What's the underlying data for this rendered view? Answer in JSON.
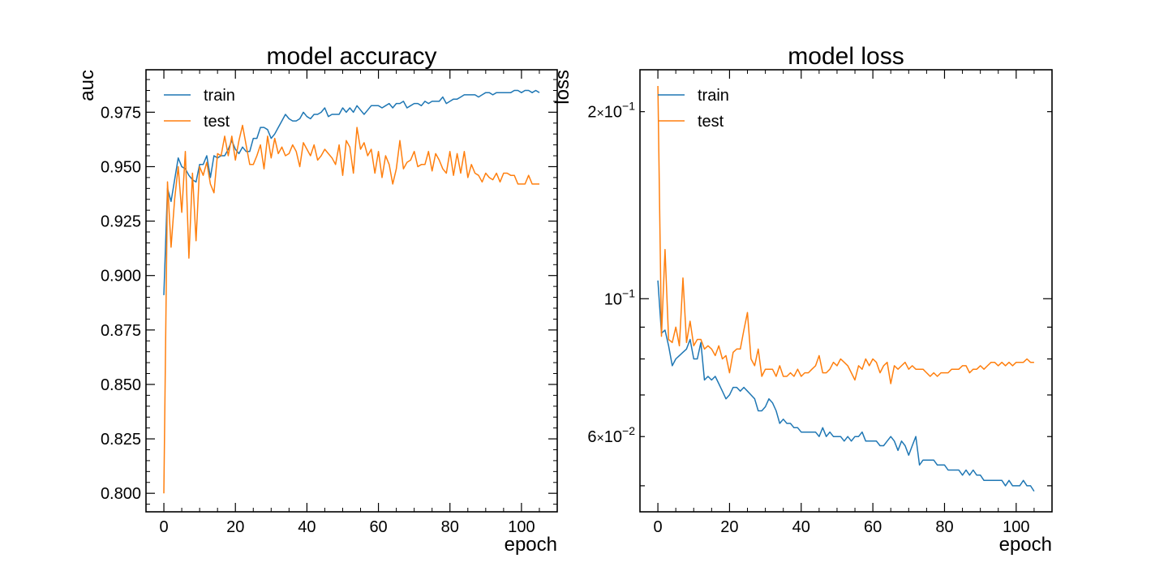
{
  "chart_data": [
    {
      "type": "line",
      "title": "model accuracy",
      "xlabel": "epoch",
      "ylabel": "auc",
      "yscale": "linear",
      "xlim": [
        -5,
        110
      ],
      "ylim": [
        0.7915,
        0.9945
      ],
      "xticks": [
        0,
        20,
        40,
        60,
        80,
        100
      ],
      "xtick_labels": [
        "0",
        "20",
        "40",
        "60",
        "80",
        "100"
      ],
      "yticks": [
        0.8,
        0.825,
        0.85,
        0.875,
        0.9,
        0.925,
        0.95,
        0.975
      ],
      "ytick_labels": [
        "0.800",
        "0.825",
        "0.850",
        "0.875",
        "0.900",
        "0.925",
        "0.950",
        "0.975"
      ],
      "legend_position": "top-left",
      "grid": false,
      "series": [
        {
          "name": "train",
          "color": "#1f77b4",
          "x": [
            0,
            1,
            2,
            3,
            4,
            5,
            6,
            7,
            8,
            9,
            10,
            11,
            12,
            13,
            14,
            15,
            16,
            17,
            18,
            19,
            20,
            21,
            22,
            23,
            24,
            25,
            26,
            27,
            28,
            29,
            30,
            31,
            32,
            33,
            34,
            35,
            36,
            37,
            38,
            39,
            40,
            41,
            42,
            43,
            44,
            45,
            46,
            47,
            48,
            49,
            50,
            51,
            52,
            53,
            54,
            55,
            56,
            57,
            58,
            59,
            60,
            61,
            62,
            63,
            64,
            65,
            66,
            67,
            68,
            69,
            70,
            71,
            72,
            73,
            74,
            75,
            76,
            77,
            78,
            79,
            80,
            81,
            82,
            83,
            84,
            85,
            86,
            87,
            88,
            89,
            90,
            91,
            92,
            93,
            94,
            95,
            96,
            97,
            98,
            99,
            100,
            101,
            102,
            103,
            104,
            105
          ],
          "values": [
            0.891,
            0.94,
            0.934,
            0.944,
            0.954,
            0.95,
            0.949,
            0.946,
            0.944,
            0.943,
            0.951,
            0.951,
            0.955,
            0.945,
            0.955,
            0.954,
            0.955,
            0.955,
            0.958,
            0.962,
            0.958,
            0.956,
            0.959,
            0.957,
            0.957,
            0.963,
            0.963,
            0.968,
            0.968,
            0.967,
            0.963,
            0.965,
            0.968,
            0.971,
            0.974,
            0.972,
            0.971,
            0.971,
            0.972,
            0.975,
            0.973,
            0.972,
            0.974,
            0.974,
            0.975,
            0.977,
            0.973,
            0.974,
            0.974,
            0.974,
            0.977,
            0.975,
            0.977,
            0.975,
            0.978,
            0.976,
            0.974,
            0.976,
            0.978,
            0.978,
            0.978,
            0.977,
            0.978,
            0.979,
            0.977,
            0.979,
            0.979,
            0.98,
            0.977,
            0.978,
            0.979,
            0.979,
            0.978,
            0.98,
            0.979,
            0.98,
            0.98,
            0.98,
            0.982,
            0.979,
            0.98,
            0.981,
            0.981,
            0.982,
            0.983,
            0.983,
            0.983,
            0.983,
            0.982,
            0.983,
            0.984,
            0.984,
            0.983,
            0.984,
            0.984,
            0.984,
            0.984,
            0.984,
            0.985,
            0.985,
            0.984,
            0.985,
            0.985,
            0.984,
            0.985,
            0.984
          ]
        },
        {
          "name": "test",
          "color": "#ff7f0e",
          "x": [
            0,
            1,
            2,
            3,
            4,
            5,
            6,
            7,
            8,
            9,
            10,
            11,
            12,
            13,
            14,
            15,
            16,
            17,
            18,
            19,
            20,
            21,
            22,
            23,
            24,
            25,
            26,
            27,
            28,
            29,
            30,
            31,
            32,
            33,
            34,
            35,
            36,
            37,
            38,
            39,
            40,
            41,
            42,
            43,
            44,
            45,
            46,
            47,
            48,
            49,
            50,
            51,
            52,
            53,
            54,
            55,
            56,
            57,
            58,
            59,
            60,
            61,
            62,
            63,
            64,
            65,
            66,
            67,
            68,
            69,
            70,
            71,
            72,
            73,
            74,
            75,
            76,
            77,
            78,
            79,
            80,
            81,
            82,
            83,
            84,
            85,
            86,
            87,
            88,
            89,
            90,
            91,
            92,
            93,
            94,
            95,
            96,
            97,
            98,
            99,
            100,
            101,
            102,
            103,
            104,
            105
          ],
          "values": [
            0.8,
            0.943,
            0.913,
            0.935,
            0.95,
            0.929,
            0.957,
            0.908,
            0.947,
            0.916,
            0.95,
            0.946,
            0.952,
            0.942,
            0.938,
            0.956,
            0.955,
            0.964,
            0.955,
            0.964,
            0.953,
            0.962,
            0.969,
            0.96,
            0.951,
            0.951,
            0.955,
            0.96,
            0.949,
            0.964,
            0.954,
            0.963,
            0.956,
            0.959,
            0.955,
            0.956,
            0.96,
            0.957,
            0.95,
            0.961,
            0.958,
            0.955,
            0.96,
            0.953,
            0.955,
            0.958,
            0.956,
            0.954,
            0.951,
            0.96,
            0.946,
            0.962,
            0.959,
            0.947,
            0.968,
            0.958,
            0.961,
            0.955,
            0.958,
            0.947,
            0.957,
            0.945,
            0.955,
            0.951,
            0.942,
            0.949,
            0.962,
            0.949,
            0.952,
            0.953,
            0.957,
            0.95,
            0.951,
            0.951,
            0.957,
            0.948,
            0.956,
            0.953,
            0.949,
            0.947,
            0.957,
            0.946,
            0.956,
            0.947,
            0.957,
            0.945,
            0.951,
            0.947,
            0.946,
            0.943,
            0.947,
            0.945,
            0.944,
            0.947,
            0.943,
            0.947,
            0.947,
            0.946,
            0.946,
            0.942,
            0.942,
            0.942,
            0.946,
            0.942,
            0.942,
            0.942
          ]
        }
      ]
    },
    {
      "type": "line",
      "title": "model loss",
      "xlabel": "epoch",
      "ylabel": "loss",
      "yscale": "log",
      "xlim": [
        -5,
        110
      ],
      "ylim": [
        0.0454,
        0.2336
      ],
      "xticks": [
        0,
        20,
        40,
        60,
        80,
        100
      ],
      "xtick_labels": [
        "0",
        "20",
        "40",
        "60",
        "80",
        "100"
      ],
      "y_major_ticks": [
        0.1
      ],
      "y_labeled_minor_ticks": [
        0.06,
        0.2
      ],
      "y_unlabeled_minor_ticks": [
        0.05,
        0.07,
        0.08,
        0.09
      ],
      "ytick_labels": {
        "0.2": [
          "2",
          "×",
          "10",
          "−1"
        ],
        "0.1": [
          "",
          "",
          "10",
          "−1"
        ],
        "0.06": [
          "6",
          "×",
          "10",
          "−2"
        ]
      },
      "legend_position": "top-left",
      "grid": false,
      "series": [
        {
          "name": "train",
          "color": "#1f77b4",
          "x": [
            0,
            1,
            2,
            3,
            4,
            5,
            6,
            7,
            8,
            9,
            10,
            11,
            12,
            13,
            14,
            15,
            16,
            17,
            18,
            19,
            20,
            21,
            22,
            23,
            24,
            25,
            26,
            27,
            28,
            29,
            30,
            31,
            32,
            33,
            34,
            35,
            36,
            37,
            38,
            39,
            40,
            41,
            42,
            43,
            44,
            45,
            46,
            47,
            48,
            49,
            50,
            51,
            52,
            53,
            54,
            55,
            56,
            57,
            58,
            59,
            60,
            61,
            62,
            63,
            64,
            65,
            66,
            67,
            68,
            69,
            70,
            71,
            72,
            73,
            74,
            75,
            76,
            77,
            78,
            79,
            80,
            81,
            82,
            83,
            84,
            85,
            86,
            87,
            88,
            89,
            90,
            91,
            92,
            93,
            94,
            95,
            96,
            97,
            98,
            99,
            100,
            101,
            102,
            103,
            104,
            105
          ],
          "values": [
            0.107,
            0.088,
            0.089,
            0.084,
            0.078,
            0.08,
            0.081,
            0.082,
            0.083,
            0.086,
            0.08,
            0.08,
            0.085,
            0.074,
            0.075,
            0.074,
            0.075,
            0.073,
            0.071,
            0.069,
            0.07,
            0.072,
            0.072,
            0.071,
            0.072,
            0.071,
            0.07,
            0.069,
            0.066,
            0.066,
            0.067,
            0.069,
            0.068,
            0.066,
            0.063,
            0.064,
            0.063,
            0.063,
            0.062,
            0.062,
            0.061,
            0.061,
            0.061,
            0.061,
            0.061,
            0.06,
            0.062,
            0.06,
            0.061,
            0.06,
            0.06,
            0.06,
            0.059,
            0.06,
            0.059,
            0.06,
            0.06,
            0.061,
            0.059,
            0.059,
            0.059,
            0.059,
            0.058,
            0.058,
            0.059,
            0.06,
            0.059,
            0.057,
            0.059,
            0.058,
            0.056,
            0.058,
            0.06,
            0.054,
            0.055,
            0.055,
            0.055,
            0.055,
            0.054,
            0.054,
            0.054,
            0.053,
            0.053,
            0.053,
            0.053,
            0.052,
            0.053,
            0.052,
            0.053,
            0.052,
            0.052,
            0.051,
            0.051,
            0.051,
            0.051,
            0.051,
            0.051,
            0.05,
            0.051,
            0.05,
            0.05,
            0.05,
            0.051,
            0.05,
            0.05,
            0.049
          ]
        },
        {
          "name": "test",
          "color": "#ff7f0e",
          "x": [
            0,
            1,
            2,
            3,
            4,
            5,
            6,
            7,
            8,
            9,
            10,
            11,
            12,
            13,
            14,
            15,
            16,
            17,
            18,
            19,
            20,
            21,
            22,
            23,
            24,
            25,
            26,
            27,
            28,
            29,
            30,
            31,
            32,
            33,
            34,
            35,
            36,
            37,
            38,
            39,
            40,
            41,
            42,
            43,
            44,
            45,
            46,
            47,
            48,
            49,
            50,
            51,
            52,
            53,
            54,
            55,
            56,
            57,
            58,
            59,
            60,
            61,
            62,
            63,
            64,
            65,
            66,
            67,
            68,
            69,
            70,
            71,
            72,
            73,
            74,
            75,
            76,
            77,
            78,
            79,
            80,
            81,
            82,
            83,
            84,
            85,
            86,
            87,
            88,
            89,
            90,
            91,
            92,
            93,
            94,
            95,
            96,
            97,
            98,
            99,
            100,
            101,
            102,
            103,
            104,
            105
          ],
          "values": [
            0.22,
            0.087,
            0.12,
            0.086,
            0.085,
            0.09,
            0.084,
            0.108,
            0.085,
            0.092,
            0.084,
            0.086,
            0.086,
            0.083,
            0.084,
            0.083,
            0.081,
            0.084,
            0.08,
            0.081,
            0.076,
            0.082,
            0.083,
            0.083,
            0.089,
            0.095,
            0.08,
            0.078,
            0.083,
            0.075,
            0.077,
            0.077,
            0.077,
            0.075,
            0.078,
            0.075,
            0.075,
            0.076,
            0.075,
            0.077,
            0.075,
            0.076,
            0.076,
            0.077,
            0.078,
            0.081,
            0.076,
            0.076,
            0.077,
            0.079,
            0.078,
            0.08,
            0.079,
            0.078,
            0.076,
            0.074,
            0.078,
            0.077,
            0.08,
            0.078,
            0.08,
            0.079,
            0.076,
            0.078,
            0.079,
            0.073,
            0.078,
            0.077,
            0.078,
            0.079,
            0.077,
            0.078,
            0.077,
            0.077,
            0.077,
            0.076,
            0.075,
            0.076,
            0.075,
            0.076,
            0.076,
            0.076,
            0.077,
            0.077,
            0.077,
            0.078,
            0.078,
            0.076,
            0.077,
            0.077,
            0.078,
            0.077,
            0.078,
            0.079,
            0.079,
            0.078,
            0.079,
            0.078,
            0.079,
            0.078,
            0.079,
            0.079,
            0.079,
            0.08,
            0.079,
            0.079
          ]
        }
      ]
    }
  ]
}
